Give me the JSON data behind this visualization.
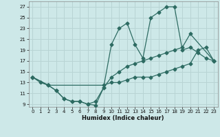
{
  "background_color": "#cde8e8",
  "grid_color": "#b8d4d4",
  "line_color": "#2d6b62",
  "xlabel": "Humidex (Indice chaleur)",
  "xlim": [
    -0.5,
    23.5
  ],
  "ylim": [
    8.5,
    28
  ],
  "xticks": [
    0,
    1,
    2,
    3,
    4,
    5,
    6,
    7,
    8,
    9,
    10,
    11,
    12,
    13,
    14,
    15,
    16,
    17,
    18,
    19,
    20,
    21,
    22,
    23
  ],
  "yticks": [
    9,
    11,
    13,
    15,
    17,
    19,
    21,
    23,
    25,
    27
  ],
  "line1_x": [
    0,
    1,
    2,
    3,
    4,
    5,
    6,
    7,
    8,
    9,
    10,
    11,
    12,
    13,
    14,
    15,
    16,
    17,
    18,
    19,
    20,
    21,
    22,
    23
  ],
  "line1_y": [
    14,
    13,
    12.5,
    11.5,
    10,
    9.5,
    9.5,
    9,
    8.8,
    12,
    20,
    23,
    24,
    20,
    17.5,
    25,
    26,
    27,
    27,
    19,
    19.5,
    18.5,
    17.5,
    17
  ],
  "line2_x": [
    0,
    2,
    3,
    4,
    5,
    6,
    7,
    8,
    9,
    10,
    11,
    12,
    13,
    14,
    15,
    16,
    17,
    18,
    19,
    20,
    23
  ],
  "line2_y": [
    14,
    12.5,
    11.5,
    10,
    9.5,
    9.5,
    9,
    9.5,
    12,
    14,
    15,
    16,
    16.5,
    17,
    17.5,
    18,
    18.5,
    19,
    19.5,
    22,
    17
  ],
  "line3_x": [
    0,
    2,
    9,
    10,
    11,
    12,
    13,
    14,
    15,
    16,
    17,
    18,
    19,
    20,
    21,
    22,
    23
  ],
  "line3_y": [
    14,
    12.5,
    12.5,
    13,
    13,
    13.5,
    14,
    14,
    14,
    14.5,
    15,
    15.5,
    16,
    16.5,
    19,
    19.5,
    17
  ]
}
